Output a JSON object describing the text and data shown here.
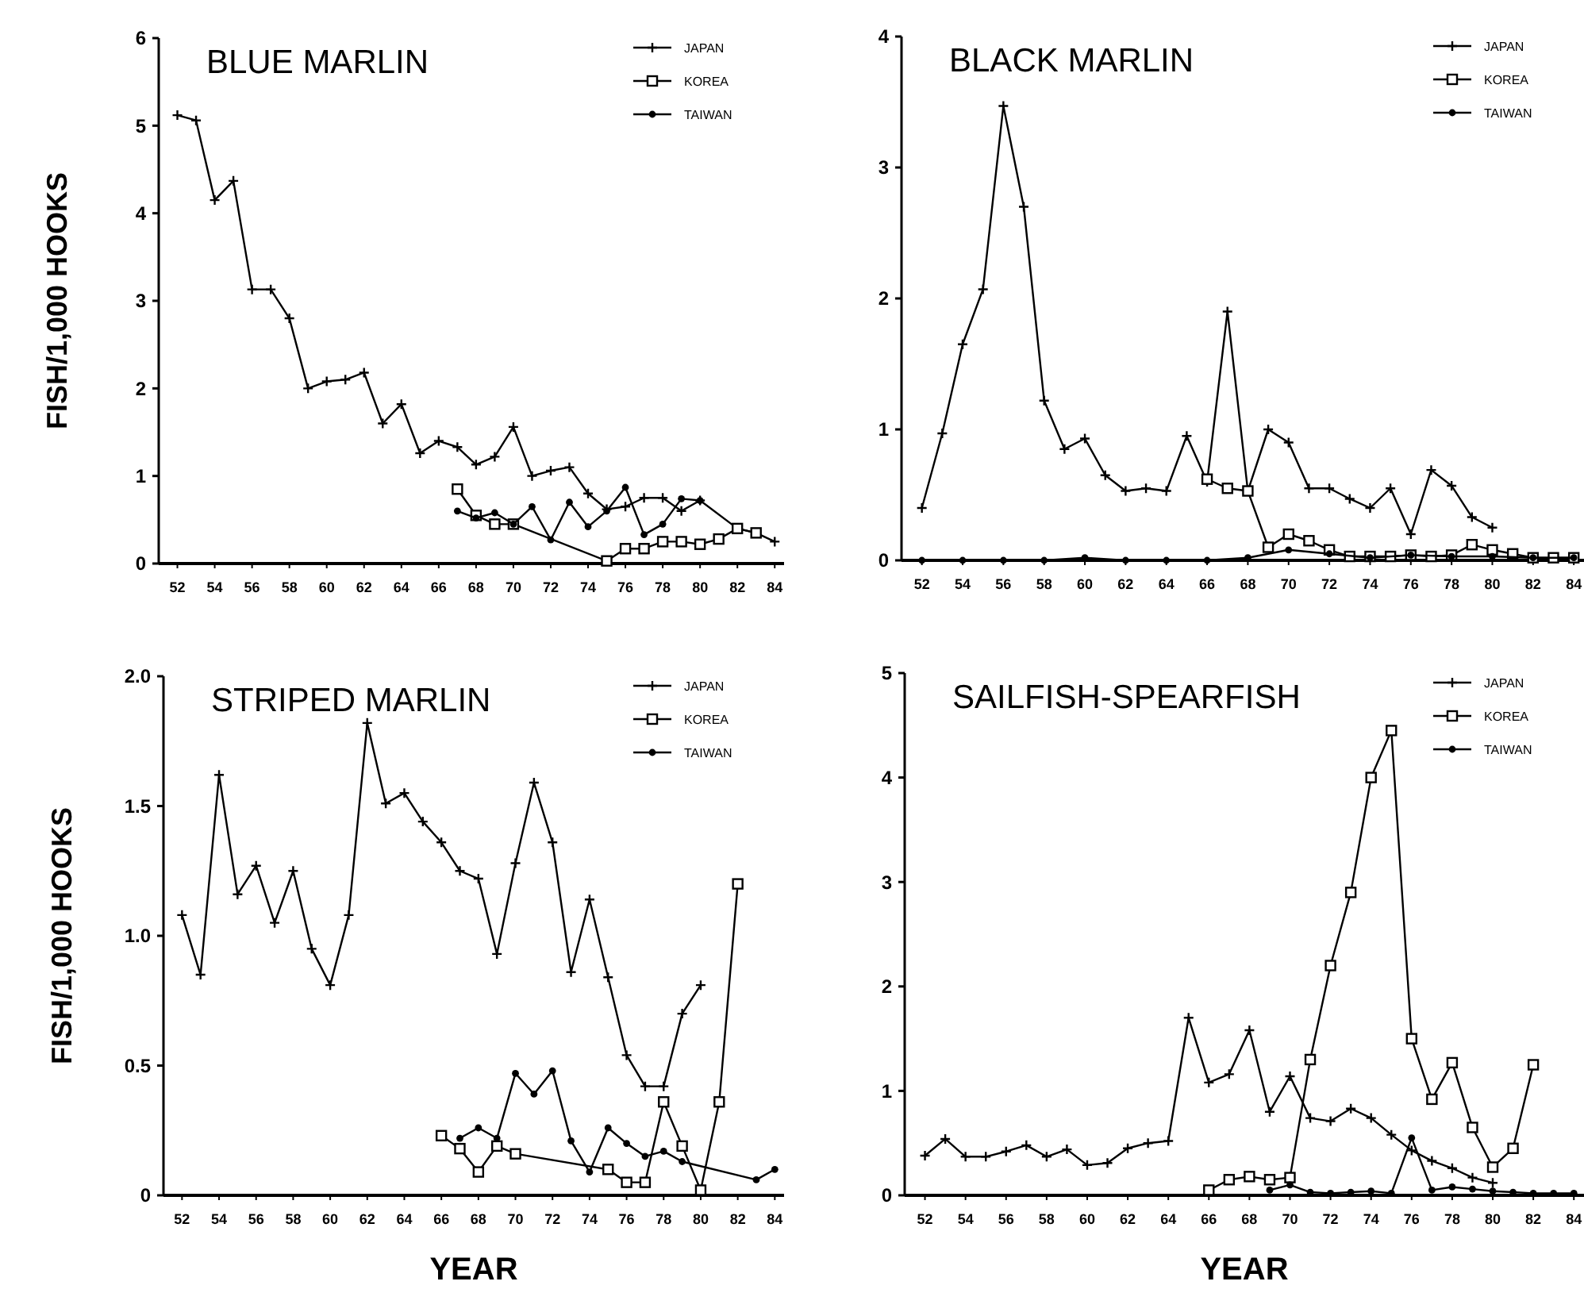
{
  "chart_data": [
    {
      "type": "line",
      "title": "BLUE MARLIN",
      "ylabel": "FISH/1,000 HOOKS",
      "xlim": [
        51,
        84.5
      ],
      "ylim": [
        0,
        6
      ],
      "xticks": [
        52,
        54,
        56,
        58,
        60,
        62,
        64,
        66,
        68,
        70,
        72,
        74,
        76,
        78,
        80,
        82,
        84
      ],
      "yticks": [
        0,
        1,
        2,
        3,
        4,
        5,
        6
      ],
      "legend": "top right",
      "series": [
        {
          "name": "JAPAN",
          "color": "#000000",
          "marker": "cross",
          "x": [
            52,
            53,
            54,
            55,
            56,
            57,
            58,
            59,
            60,
            61,
            62,
            63,
            64,
            65,
            66,
            67,
            68,
            69,
            70,
            71,
            72,
            73,
            74,
            75,
            76,
            77,
            78,
            79,
            80,
            82,
            83,
            84
          ],
          "values": [
            5.12,
            5.06,
            4.15,
            4.37,
            3.13,
            3.13,
            2.8,
            2.0,
            2.08,
            2.1,
            2.18,
            1.6,
            1.82,
            1.26,
            1.4,
            1.33,
            1.13,
            1.22,
            1.56,
            1.0,
            1.06,
            1.1,
            0.8,
            0.62,
            0.65,
            0.75,
            0.75,
            0.6,
            0.72,
            0.4,
            0.35,
            0.25
          ]
        },
        {
          "name": "KOREA",
          "color": "#000000",
          "marker": "square",
          "x": [
            67,
            68,
            69,
            70,
            75,
            76,
            77,
            78,
            79,
            80,
            81,
            82,
            83
          ],
          "values": [
            0.85,
            0.55,
            0.45,
            0.45,
            0.03,
            0.17,
            0.17,
            0.25,
            0.25,
            0.22,
            0.28,
            0.4,
            0.35
          ]
        },
        {
          "name": "TAIWAN",
          "color": "#000000",
          "marker": "circle",
          "x": [
            67,
            68,
            69,
            70,
            71,
            72,
            73,
            74,
            75,
            76,
            77,
            78,
            79,
            80
          ],
          "values": [
            0.6,
            0.52,
            0.58,
            0.45,
            0.65,
            0.27,
            0.7,
            0.42,
            0.6,
            0.87,
            0.33,
            0.45,
            0.74,
            0.72
          ]
        }
      ]
    },
    {
      "type": "line",
      "title": "BLACK MARLIN",
      "xlim": [
        51,
        84.5
      ],
      "ylim": [
        0,
        4
      ],
      "xticks": [
        52,
        54,
        56,
        58,
        60,
        62,
        64,
        66,
        68,
        70,
        72,
        74,
        76,
        78,
        80,
        82,
        84
      ],
      "yticks": [
        0,
        1,
        2,
        3,
        4
      ],
      "legend": "top right",
      "series": [
        {
          "name": "JAPAN",
          "color": "#000000",
          "marker": "cross",
          "x": [
            52,
            53,
            54,
            55,
            56,
            57,
            58,
            59,
            60,
            61,
            62,
            63,
            64,
            65,
            66,
            67,
            68,
            69,
            70,
            71,
            72,
            73,
            74,
            75,
            76,
            77,
            78,
            79,
            80
          ],
          "values": [
            0.4,
            0.97,
            1.65,
            2.07,
            3.47,
            2.7,
            1.22,
            0.85,
            0.93,
            0.65,
            0.53,
            0.55,
            0.53,
            0.95,
            0.6,
            1.9,
            0.53,
            1.0,
            0.9,
            0.55,
            0.55,
            0.47,
            0.4,
            0.55,
            0.2,
            0.69,
            0.57,
            0.33,
            0.25
          ]
        },
        {
          "name": "KOREA",
          "color": "#000000",
          "marker": "square",
          "x": [
            66,
            67,
            68,
            69,
            70,
            71,
            72,
            73,
            74,
            75,
            76,
            77,
            78,
            79,
            80,
            81,
            82,
            83,
            84
          ],
          "values": [
            0.62,
            0.55,
            0.53,
            0.1,
            0.2,
            0.15,
            0.08,
            0.03,
            0.03,
            0.03,
            0.04,
            0.03,
            0.04,
            0.12,
            0.08,
            0.05,
            0.02,
            0.02,
            0.02
          ]
        },
        {
          "name": "TAIWAN",
          "color": "#000000",
          "marker": "circle",
          "x": [
            52,
            54,
            56,
            58,
            60,
            62,
            64,
            66,
            68,
            70,
            72,
            74,
            76,
            78,
            80,
            82,
            84
          ],
          "values": [
            0,
            0,
            0,
            0,
            0.02,
            0,
            0,
            0,
            0.02,
            0.08,
            0.05,
            0.02,
            0.04,
            0.03,
            0.03,
            0.02,
            0.02
          ]
        }
      ]
    },
    {
      "type": "line",
      "title": "STRIPED MARLIN",
      "ylabel": "FISH/1,000 HOOKS",
      "xlabel": "YEAR",
      "xlim": [
        51,
        84.5
      ],
      "ylim": [
        0,
        2
      ],
      "xticks": [
        52,
        54,
        56,
        58,
        60,
        62,
        64,
        66,
        68,
        70,
        72,
        74,
        76,
        78,
        80,
        82,
        84
      ],
      "yticks": [
        0,
        0.5,
        {
          "value": 1,
          "label": "1.0"
        },
        1.5,
        {
          "value": 2,
          "label": "2.0"
        }
      ],
      "legend": "top right",
      "series": [
        {
          "name": "JAPAN",
          "color": "#000000",
          "marker": "cross",
          "x": [
            52,
            53,
            54,
            55,
            56,
            57,
            58,
            59,
            60,
            61,
            62,
            63,
            64,
            65,
            66,
            67,
            68,
            69,
            70,
            71,
            72,
            73,
            74,
            75,
            76,
            77,
            78,
            79,
            80
          ],
          "values": [
            1.08,
            0.85,
            1.62,
            1.16,
            1.27,
            1.05,
            1.25,
            0.95,
            0.81,
            1.08,
            1.82,
            1.51,
            1.55,
            1.44,
            1.36,
            1.25,
            1.22,
            0.93,
            1.28,
            1.59,
            1.36,
            0.86,
            1.14,
            0.84,
            0.54,
            0.42,
            0.42,
            0.7,
            0.81
          ]
        },
        {
          "name": "KOREA",
          "color": "#000000",
          "marker": "square",
          "x": [
            66,
            67,
            68,
            69,
            70,
            75,
            76,
            77,
            78,
            79,
            80,
            81,
            82
          ],
          "values": [
            0.23,
            0.18,
            0.09,
            0.19,
            0.16,
            0.1,
            0.05,
            0.05,
            0.36,
            0.19,
            0.02,
            0.36,
            1.2
          ]
        },
        {
          "name": "TAIWAN",
          "color": "#000000",
          "marker": "circle",
          "x": [
            67,
            68,
            69,
            70,
            71,
            72,
            73,
            74,
            75,
            76,
            77,
            78,
            79,
            83,
            84
          ],
          "values": [
            0.22,
            0.26,
            0.22,
            0.47,
            0.39,
            0.48,
            0.21,
            0.09,
            0.26,
            0.2,
            0.15,
            0.17,
            0.13,
            0.06,
            0.1
          ]
        }
      ]
    },
    {
      "type": "line",
      "title": "SAILFISH-SPEARFISH",
      "xlabel": "YEAR",
      "xlim": [
        51,
        84.5
      ],
      "ylim": [
        0,
        5
      ],
      "xticks": [
        52,
        54,
        56,
        58,
        60,
        62,
        64,
        66,
        68,
        70,
        72,
        74,
        76,
        78,
        80,
        82,
        84
      ],
      "yticks": [
        0,
        1,
        2,
        3,
        4,
        5
      ],
      "legend": "top right",
      "series": [
        {
          "name": "JAPAN",
          "color": "#000000",
          "marker": "cross",
          "x": [
            52,
            53,
            54,
            55,
            56,
            57,
            58,
            59,
            60,
            61,
            62,
            63,
            64,
            65,
            66,
            67,
            68,
            69,
            70,
            71,
            72,
            73,
            74,
            75,
            76,
            77,
            78,
            79,
            80
          ],
          "values": [
            0.38,
            0.54,
            0.37,
            0.37,
            0.42,
            0.48,
            0.37,
            0.44,
            0.29,
            0.31,
            0.45,
            0.5,
            0.52,
            1.7,
            1.08,
            1.16,
            1.58,
            0.8,
            1.14,
            0.74,
            0.71,
            0.83,
            0.74,
            0.58,
            0.43,
            0.33,
            0.26,
            0.17,
            0.12
          ]
        },
        {
          "name": "KOREA",
          "color": "#000000",
          "marker": "square",
          "x": [
            66,
            67,
            68,
            69,
            70,
            71,
            72,
            73,
            74,
            75,
            76,
            77,
            78,
            79,
            80,
            81,
            82
          ],
          "values": [
            0.05,
            0.15,
            0.18,
            0.15,
            0.17,
            1.3,
            2.2,
            2.9,
            4.0,
            4.45,
            1.5,
            0.92,
            1.27,
            0.65,
            0.27,
            0.45,
            1.25
          ]
        },
        {
          "name": "TAIWAN",
          "color": "#000000",
          "marker": "circle",
          "x": [
            69,
            70,
            71,
            72,
            73,
            74,
            75,
            76,
            77,
            78,
            79,
            80,
            81,
            82,
            83,
            84
          ],
          "values": [
            0.05,
            0.1,
            0.03,
            0.02,
            0.03,
            0.04,
            0.02,
            0.55,
            0.05,
            0.08,
            0.06,
            0.04,
            0.03,
            0.02,
            0.02,
            0.02
          ]
        }
      ]
    }
  ]
}
